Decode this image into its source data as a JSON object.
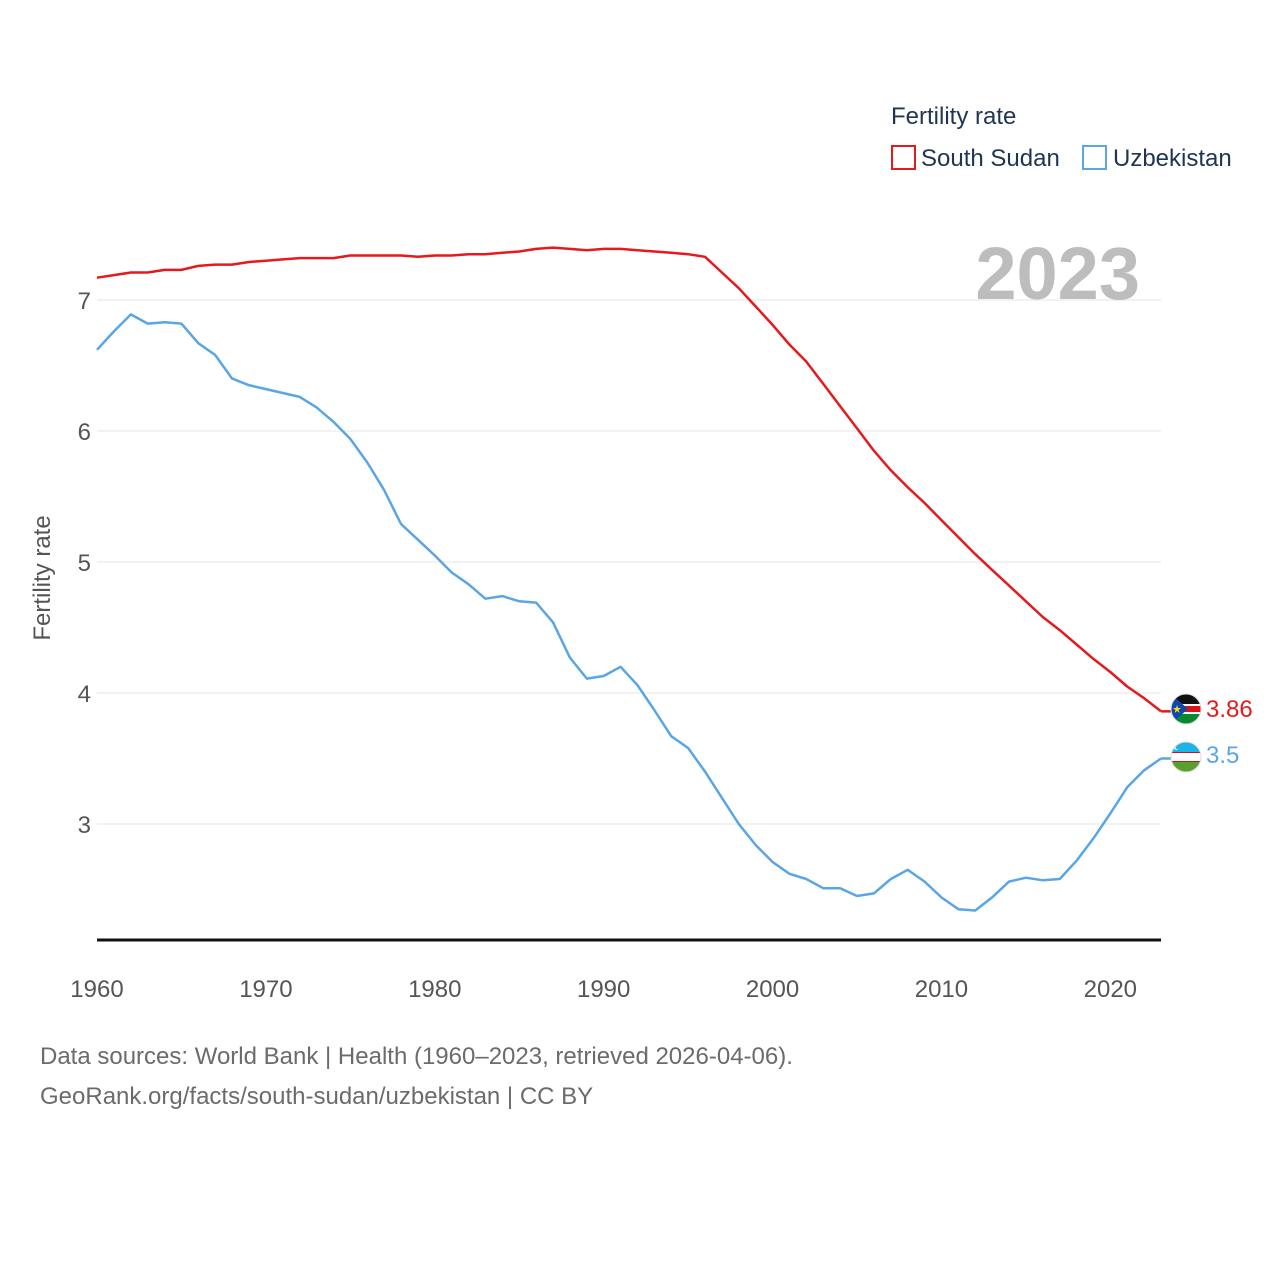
{
  "chart_data": {
    "type": "line",
    "ylabel": "Fertility rate",
    "xlabel": "",
    "current_year": "2023",
    "xlim": [
      1960,
      2023
    ],
    "ylim": [
      2.1,
      7.7
    ],
    "x_ticks": [
      1960,
      1970,
      1980,
      1990,
      2000,
      2010,
      2020
    ],
    "y_ticks": [
      3,
      4,
      5,
      6,
      7
    ],
    "legend": {
      "title": "Fertility rate",
      "position": "top-right"
    },
    "years": [
      1960,
      1961,
      1962,
      1963,
      1964,
      1965,
      1966,
      1967,
      1968,
      1969,
      1970,
      1971,
      1972,
      1973,
      1974,
      1975,
      1976,
      1977,
      1978,
      1979,
      1980,
      1981,
      1982,
      1983,
      1984,
      1985,
      1986,
      1987,
      1988,
      1989,
      1990,
      1991,
      1992,
      1993,
      1994,
      1995,
      1996,
      1997,
      1998,
      1999,
      2000,
      2001,
      2002,
      2003,
      2004,
      2005,
      2006,
      2007,
      2008,
      2009,
      2010,
      2011,
      2012,
      2013,
      2014,
      2015,
      2016,
      2017,
      2018,
      2019,
      2020,
      2021,
      2022,
      2023
    ],
    "series": [
      {
        "name": "South Sudan",
        "color": "#e41a1c",
        "end_label": "3.86",
        "values": [
          7.17,
          7.19,
          7.21,
          7.21,
          7.23,
          7.23,
          7.26,
          7.27,
          7.27,
          7.29,
          7.3,
          7.31,
          7.32,
          7.32,
          7.32,
          7.34,
          7.34,
          7.34,
          7.34,
          7.33,
          7.34,
          7.34,
          7.35,
          7.35,
          7.36,
          7.37,
          7.39,
          7.4,
          7.39,
          7.38,
          7.39,
          7.39,
          7.38,
          7.37,
          7.36,
          7.35,
          7.33,
          7.21,
          7.09,
          6.95,
          6.81,
          6.66,
          6.53,
          6.36,
          6.19,
          6.02,
          5.85,
          5.7,
          5.57,
          5.45,
          5.32,
          5.19,
          5.06,
          4.94,
          4.82,
          4.7,
          4.58,
          4.48,
          4.37,
          4.26,
          4.16,
          4.05,
          3.96,
          3.86
        ]
      },
      {
        "name": "Uzbekistan",
        "color": "#5aa5e6",
        "end_label": "3.5",
        "values": [
          6.62,
          6.76,
          6.89,
          6.82,
          6.83,
          6.82,
          6.67,
          6.58,
          6.4,
          6.35,
          6.32,
          6.29,
          6.26,
          6.18,
          6.07,
          5.94,
          5.76,
          5.55,
          5.29,
          5.17,
          5.05,
          4.92,
          4.83,
          4.72,
          4.74,
          4.7,
          4.69,
          4.54,
          4.27,
          4.11,
          4.13,
          4.2,
          4.06,
          3.87,
          3.67,
          3.58,
          3.4,
          3.2,
          3.0,
          2.84,
          2.71,
          2.62,
          2.58,
          2.51,
          2.51,
          2.45,
          2.47,
          2.58,
          2.65,
          2.56,
          2.44,
          2.35,
          2.34,
          2.44,
          2.56,
          2.59,
          2.57,
          2.58,
          2.72,
          2.89,
          3.08,
          3.28,
          3.41,
          3.5
        ]
      }
    ]
  },
  "footer": {
    "line1": "Data sources: World Bank | Health (1960–2023, retrieved 2026-04-06).",
    "line2": "GeoRank.org/facts/south-sudan/uzbekistan | CC BY"
  }
}
